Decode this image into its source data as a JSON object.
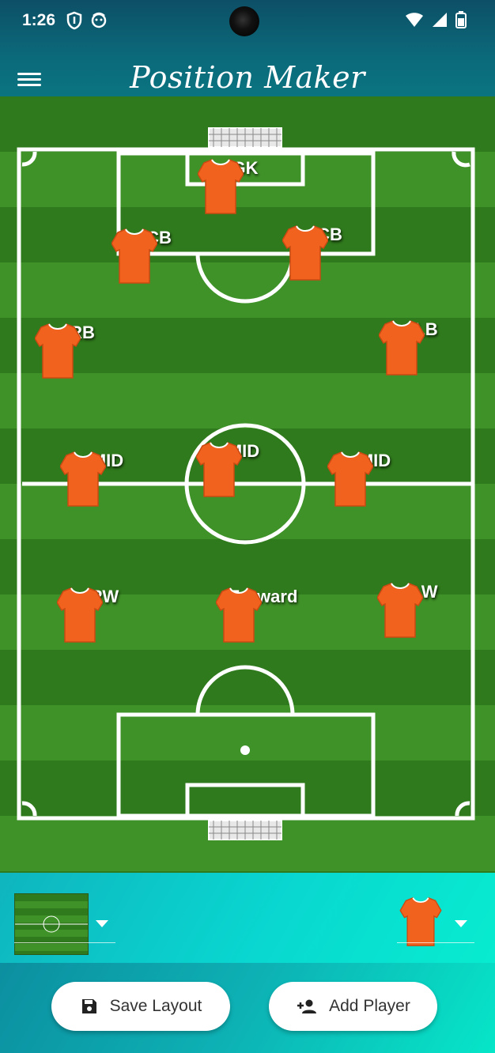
{
  "status": {
    "time": "1:26"
  },
  "app": {
    "title": "Position Maker"
  },
  "players": [
    {
      "id": "gk",
      "label": "GK"
    },
    {
      "id": "cb-left",
      "label": "CB"
    },
    {
      "id": "cb-right",
      "label": "CB"
    },
    {
      "id": "rb",
      "label": "RB"
    },
    {
      "id": "lb",
      "label": "LB"
    },
    {
      "id": "mid-left",
      "label": "MID"
    },
    {
      "id": "mid-center",
      "label": "MID"
    },
    {
      "id": "mid-right",
      "label": "MID"
    },
    {
      "id": "rw",
      "label": "RW"
    },
    {
      "id": "forward",
      "label": "Forward"
    },
    {
      "id": "lw",
      "label": "LW"
    }
  ],
  "actions": {
    "save_label": "Save Layout",
    "add_label": "Add Player"
  },
  "colors": {
    "jersey": "#f0621e",
    "pitch_dark": "#2f7a1c",
    "pitch_light": "#3f9228",
    "header": "#0b6a7a"
  },
  "icons": {
    "menu": "menu-icon",
    "save": "save-icon",
    "add_player": "person-add-icon"
  }
}
